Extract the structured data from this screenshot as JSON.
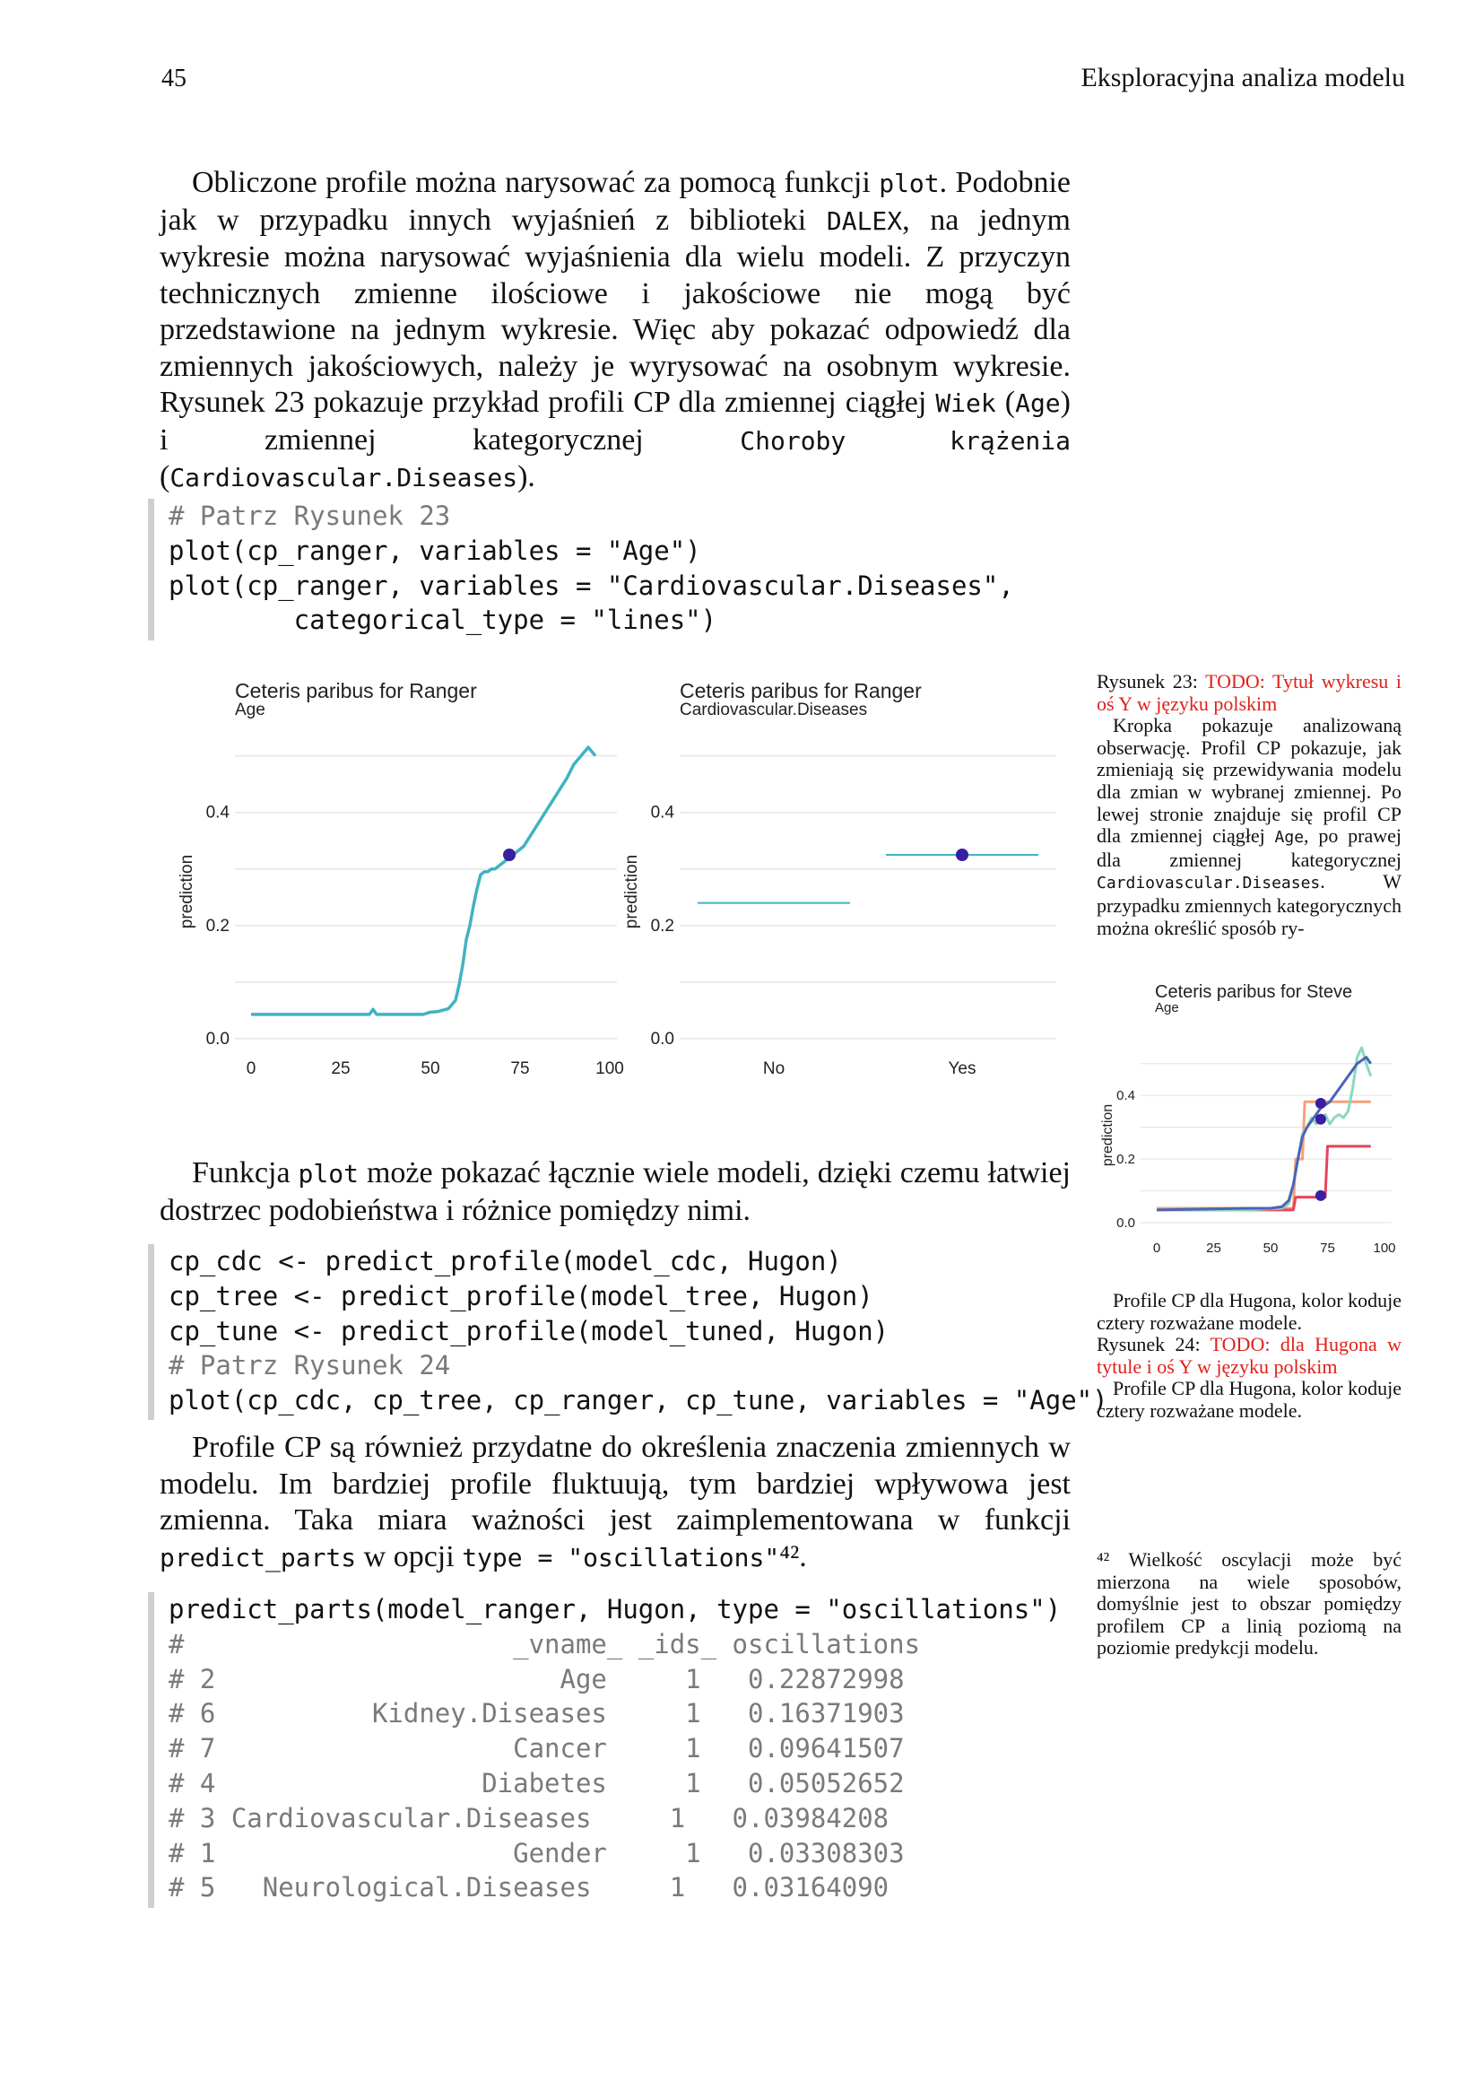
{
  "header": {
    "page_number": "45",
    "title": "Eksploracyjna analiza modelu"
  },
  "para1": [
    {
      "t": "Obliczone profile można narysować za pomocą funkcji "
    },
    {
      "c": "plot"
    },
    {
      "t": ". Podobnie jak w przypadku innych wyjaśnień z biblioteki "
    },
    {
      "c": "DALEX"
    },
    {
      "t": ", na jednym wykresie można narysować wyjaśnienia dla wielu modeli. Z przyczyn technicznych zmienne ilościowe i jakościowe nie mogą być przedstawione na jednym wykresie. Więc aby pokazać odpowiedź dla zmiennych jakościowych, należy je wyrysować na osobnym wykresie. Rysunek 23 pokazuje przykład profili CP dla zmiennej ciągłej "
    },
    {
      "c": "Wiek"
    },
    {
      "t": " ("
    },
    {
      "c": "Age"
    },
    {
      "t": ") i zmiennej kategorycznej "
    },
    {
      "c": "Choroby krążenia"
    },
    {
      "t": " ("
    },
    {
      "c": "Cardiovascular.Diseases"
    },
    {
      "t": ")."
    }
  ],
  "code1": [
    {
      "text": "# Patrz Rysunek 23",
      "comment": true
    },
    {
      "text": "plot(cp_ranger, variables = \"Age\")",
      "comment": false
    },
    {
      "text": "plot(cp_ranger, variables = \"Cardiovascular.Diseases\",",
      "comment": false
    },
    {
      "text": "        categorical_type = \"lines\")",
      "comment": false
    }
  ],
  "para2": [
    {
      "t": "Funkcja "
    },
    {
      "c": "plot"
    },
    {
      "t": " może pokazać łącznie wiele modeli, dzięki czemu łatwiej dostrzec podobieństwa i różnice pomiędzy nimi."
    }
  ],
  "code2": [
    {
      "text": "cp_cdc <- predict_profile(model_cdc, Hugon)",
      "comment": false
    },
    {
      "text": "cp_tree <- predict_profile(model_tree, Hugon)",
      "comment": false
    },
    {
      "text": "cp_tune <- predict_profile(model_tuned, Hugon)",
      "comment": false
    },
    {
      "text": "# Patrz Rysunek 24",
      "comment": true
    },
    {
      "text": "plot(cp_cdc, cp_tree, cp_ranger, cp_tune, variables = \"Age\")",
      "comment": false
    }
  ],
  "para3": [
    {
      "t": "Profile CP są również przydatne do określenia znaczenia zmiennych w modelu. Im bardziej profile fluktuują, tym bardziej wpływowa jest zmienna. Taka miara ważności jest zaimplementowana w funkcji "
    },
    {
      "c": "predict_parts"
    },
    {
      "t": " w opcji "
    },
    {
      "c": "type = \"oscillations\""
    },
    {
      "t": "⁴²."
    }
  ],
  "code3": [
    {
      "text": "predict_parts(model_ranger, Hugon, type = \"oscillations\")",
      "comment": false
    },
    {
      "text": "#                     _vname_ _ids_ oscillations",
      "comment": true
    },
    {
      "text": "# 2                      Age     1   0.22872998",
      "comment": true
    },
    {
      "text": "# 6          Kidney.Diseases     1   0.16371903",
      "comment": true
    },
    {
      "text": "# 7                   Cancer     1   0.09641507",
      "comment": true
    },
    {
      "text": "# 4                 Diabetes     1   0.05052652",
      "comment": true
    },
    {
      "text": "# 3 Cardiovascular.Diseases     1   0.03984208",
      "comment": true
    },
    {
      "text": "# 1                   Gender     1   0.03308303",
      "comment": true
    },
    {
      "text": "# 5   Neurological.Diseases     1   0.03164090",
      "comment": true
    }
  ],
  "sidenote23": {
    "label": "Rysunek 23:",
    "todo": "TODO: Tytuł wykresu i oś Y w języku polskim",
    "body": [
      {
        "t": "Kropka pokazuje analizowaną obserwację. Profil CP pokazuje, jak zmieniają się przewidywania modelu dla zmian w wybranej zmiennej. Po lewej stronie znajduje się profil CP dla zmiennej ciągłej "
      },
      {
        "c": "Age"
      },
      {
        "t": ", po prawej dla zmiennej kategorycznej "
      },
      {
        "c": "Cardiovascular.Diseases"
      },
      {
        "t": ". W przypadku zmiennych kategorycznych można określić sposób ry-"
      }
    ]
  },
  "sidenote24": {
    "caption_a": "Profile CP dla Hugona, kolor koduje cztery rozważane modele.",
    "label": "Rysunek 24:",
    "todo": "TODO: dla Hugona w tytule i oś Y w języku polskim",
    "caption_b": "Profile CP dla Hugona, kolor koduje cztery rozważane modele."
  },
  "footnote42": {
    "mark": "⁴²",
    "text": "Wielkość oscylacji może być mierzona na wiele sposobów, domyślnie jest to obszar pomiędzy profilem CP a linią poziomą na poziomie predykcji modelu."
  },
  "colors": {
    "teal": "#3fb3c2",
    "point": "#371ea3",
    "orange": "#f6a07a",
    "red": "#e6455b",
    "blue": "#4b64b6",
    "mint": "#8ad8c0",
    "todo": "#e0201a"
  },
  "chart_data": [
    {
      "type": "line",
      "title": "Ceteris paribus for Ranger",
      "subtitle": "Age",
      "ylabel": "prediction",
      "xlim": [
        0,
        100
      ],
      "ylim": [
        0.0,
        0.52
      ],
      "xticks": [
        "0",
        "25",
        "50",
        "75",
        "100"
      ],
      "yticks": [
        "0.0",
        "0.2",
        "0.4"
      ],
      "series": [
        {
          "x": [
            0,
            10,
            20,
            30,
            33,
            34,
            35,
            40,
            45,
            48,
            50,
            52,
            55,
            57,
            58,
            59,
            60,
            61,
            62,
            63,
            64,
            65,
            66,
            67,
            68,
            70,
            72,
            74,
            75,
            76,
            78,
            80,
            82,
            84,
            86,
            88,
            90,
            92,
            94,
            96
          ],
          "y": [
            0.043,
            0.043,
            0.043,
            0.043,
            0.043,
            0.052,
            0.043,
            0.043,
            0.043,
            0.043,
            0.047,
            0.048,
            0.053,
            0.068,
            0.095,
            0.13,
            0.175,
            0.2,
            0.235,
            0.265,
            0.29,
            0.295,
            0.295,
            0.3,
            0.3,
            0.31,
            0.32,
            0.33,
            0.335,
            0.34,
            0.36,
            0.38,
            0.4,
            0.42,
            0.44,
            0.46,
            0.485,
            0.5,
            0.515,
            0.5
          ]
        }
      ],
      "point": {
        "x": 72,
        "y": 0.325
      }
    },
    {
      "type": "line",
      "title": "Ceteris paribus for Ranger",
      "subtitle": "Cardiovascular.Diseases",
      "ylabel": "prediction",
      "categories": [
        "No",
        "Yes"
      ],
      "ylim": [
        0.0,
        0.52
      ],
      "yticks": [
        "0.0",
        "0.2",
        "0.4"
      ],
      "values": [
        0.24,
        0.325
      ],
      "point": {
        "category": "Yes",
        "y": 0.325
      }
    },
    {
      "type": "line",
      "title": "Ceteris paribus for Steve",
      "subtitle": "Age",
      "ylabel": "prediction",
      "xlim": [
        0,
        100
      ],
      "ylim": [
        0.0,
        0.55
      ],
      "xticks": [
        "0",
        "25",
        "50",
        "75",
        "100"
      ],
      "yticks": [
        "0.0",
        "0.2",
        "0.4"
      ],
      "series": [
        {
          "color": "orange",
          "x": [
            0,
            50,
            60,
            61,
            64,
            65,
            66,
            94
          ],
          "y": [
            0.045,
            0.045,
            0.045,
            0.2,
            0.2,
            0.38,
            0.38,
            0.38
          ]
        },
        {
          "color": "red",
          "x": [
            0,
            60,
            61,
            74,
            75,
            84,
            85,
            94
          ],
          "y": [
            0.04,
            0.04,
            0.08,
            0.08,
            0.24,
            0.24,
            0.24,
            0.24
          ]
        },
        {
          "color": "mint",
          "x": [
            0,
            40,
            55,
            58,
            60,
            62,
            64,
            66,
            68,
            70,
            72,
            74,
            76,
            78,
            80,
            82,
            84,
            86,
            88,
            90,
            92,
            94
          ],
          "y": [
            0.04,
            0.04,
            0.045,
            0.06,
            0.12,
            0.2,
            0.28,
            0.3,
            0.33,
            0.31,
            0.33,
            0.34,
            0.31,
            0.33,
            0.34,
            0.33,
            0.35,
            0.42,
            0.52,
            0.55,
            0.5,
            0.46
          ]
        },
        {
          "color": "blue",
          "x": [
            0,
            40,
            50,
            55,
            58,
            60,
            62,
            64,
            66,
            68,
            70,
            72,
            74,
            76,
            78,
            80,
            82,
            84,
            86,
            88,
            90,
            92,
            94
          ],
          "y": [
            0.04,
            0.045,
            0.045,
            0.05,
            0.07,
            0.12,
            0.2,
            0.27,
            0.3,
            0.32,
            0.34,
            0.36,
            0.37,
            0.38,
            0.4,
            0.42,
            0.44,
            0.46,
            0.48,
            0.5,
            0.51,
            0.52,
            0.5
          ]
        }
      ],
      "points": [
        {
          "x": 72,
          "y": 0.375
        },
        {
          "x": 72,
          "y": 0.325
        },
        {
          "x": 72,
          "y": 0.085
        }
      ]
    }
  ]
}
